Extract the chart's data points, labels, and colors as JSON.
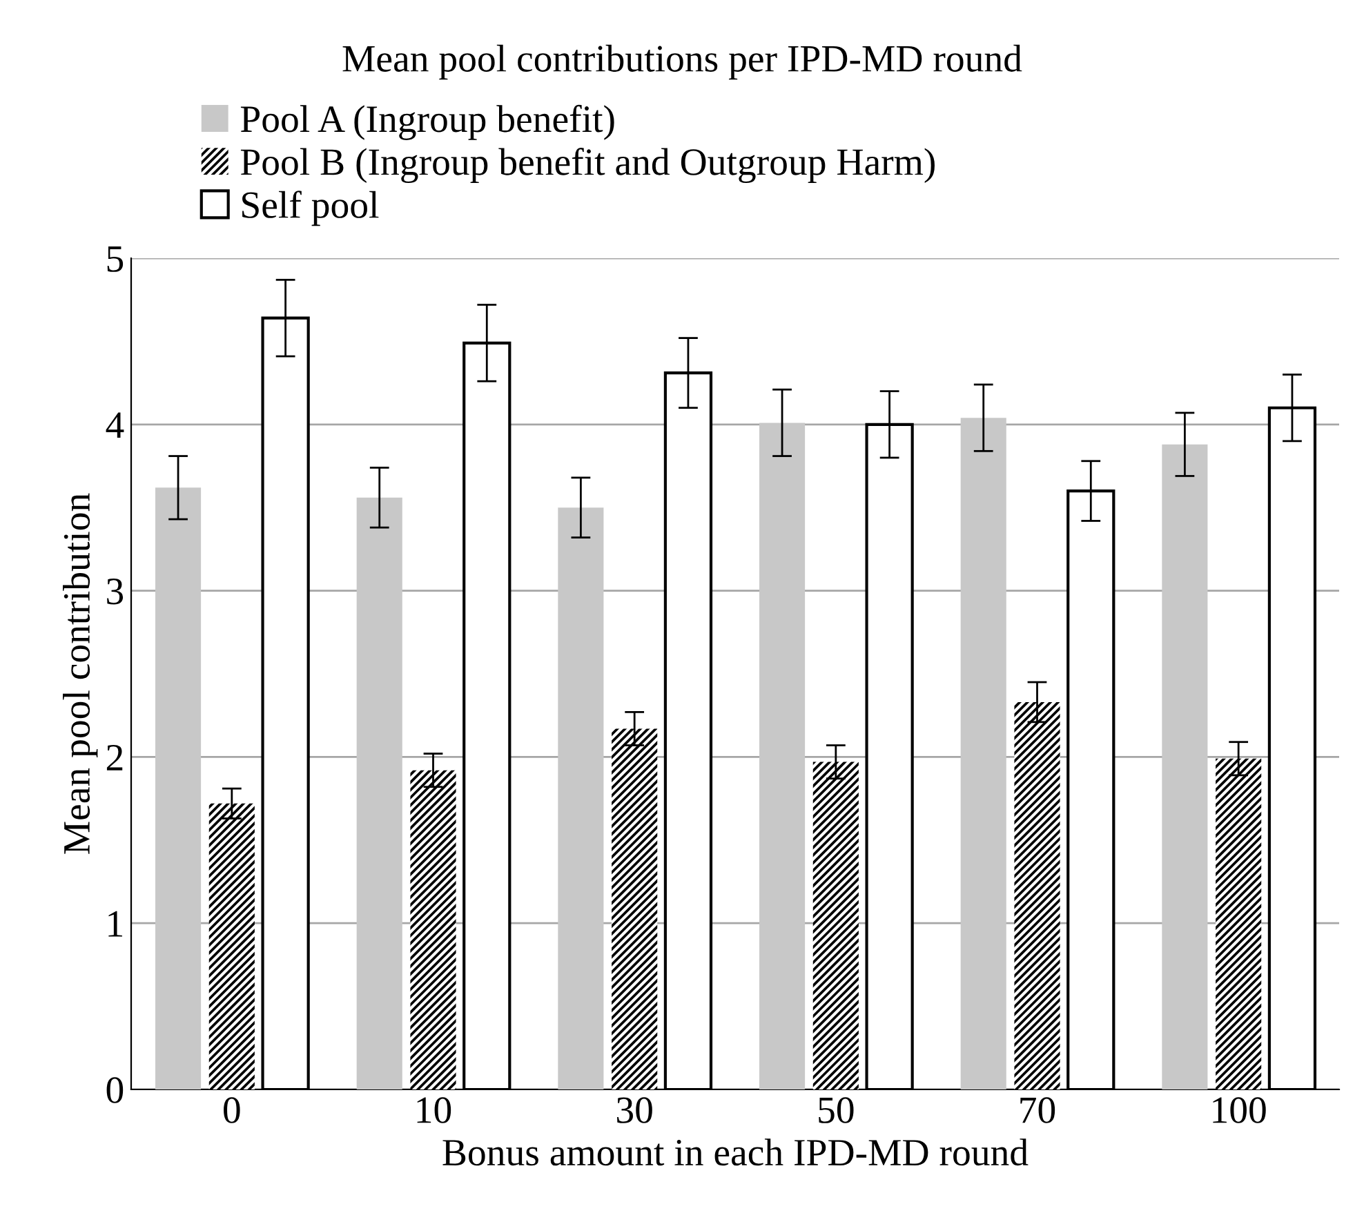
{
  "chart_data": {
    "type": "bar",
    "title": "Mean pool contributions per IPD-MD round",
    "xlabel": "Bonus amount in each IPD-MD round",
    "ylabel": "Mean pool contribution",
    "categories": [
      "0",
      "10",
      "30",
      "50",
      "70",
      "100"
    ],
    "series": [
      {
        "name": "Pool A (Ingroup benefit)",
        "color": "#c8c8c8",
        "values": [
          3.62,
          3.56,
          3.5,
          4.01,
          4.04,
          3.88
        ],
        "errors": [
          0.19,
          0.18,
          0.18,
          0.2,
          0.2,
          0.19
        ]
      },
      {
        "name": "Pool B (Ingroup benefit and Outgroup Harm)",
        "color": "#000000",
        "values": [
          1.72,
          1.92,
          2.17,
          1.97,
          2.33,
          1.99
        ],
        "errors": [
          0.09,
          0.1,
          0.1,
          0.1,
          0.12,
          0.1
        ]
      },
      {
        "name": "Self pool",
        "color": "#ffffff",
        "values": [
          4.64,
          4.49,
          4.31,
          4.0,
          3.6,
          4.1
        ],
        "errors": [
          0.23,
          0.23,
          0.21,
          0.2,
          0.18,
          0.2
        ]
      }
    ],
    "ylim": [
      0,
      5
    ],
    "yticks": [
      0,
      1,
      2,
      3,
      4,
      5
    ],
    "grid": "y",
    "legend": "top left"
  }
}
